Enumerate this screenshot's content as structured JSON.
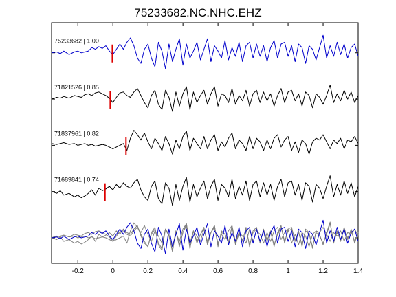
{
  "chart_data": {
    "type": "line",
    "title": "75233682.NC.NHC.EHZ",
    "xlabel": "",
    "ylabel": "",
    "xlim": [
      -0.35,
      1.4
    ],
    "xticks": [
      -0.2,
      0,
      0.2,
      0.4,
      0.6,
      0.8,
      1,
      1.2,
      1.4
    ],
    "xtick_labels": [
      "-0.2",
      "0",
      "0.2",
      "0.4",
      "0.6",
      "0.8",
      "1",
      "1.2",
      "1.4"
    ],
    "grid": false,
    "legend": "none",
    "colors": {
      "primary": "#0000cc",
      "secondary": "#000000",
      "overlay": "#808080",
      "marker": "#dd0000"
    },
    "series": [
      {
        "name": "75233682 | 1.00",
        "color": "#0000cc",
        "pick_time": -0.003,
        "t": [
          -0.35,
          -0.32,
          -0.3,
          -0.28,
          -0.25,
          -0.22,
          -0.2,
          -0.18,
          -0.16,
          -0.14,
          -0.12,
          -0.1,
          -0.08,
          -0.06,
          -0.04,
          -0.02,
          0,
          0.02,
          0.04,
          0.06,
          0.08,
          0.1,
          0.12,
          0.14,
          0.16,
          0.18,
          0.2,
          0.22,
          0.24,
          0.26,
          0.28,
          0.3,
          0.32,
          0.34,
          0.36,
          0.38,
          0.4,
          0.42,
          0.44,
          0.46,
          0.48,
          0.5,
          0.52,
          0.54,
          0.56,
          0.58,
          0.6,
          0.62,
          0.64,
          0.66,
          0.68,
          0.7,
          0.72,
          0.74,
          0.76,
          0.78,
          0.8,
          0.82,
          0.84,
          0.86,
          0.88,
          0.9,
          0.92,
          0.94,
          0.96,
          0.98,
          1,
          1.02,
          1.04,
          1.06,
          1.08,
          1.1,
          1.12,
          1.14,
          1.16,
          1.18,
          1.2,
          1.22,
          1.24,
          1.26,
          1.28,
          1.3,
          1.32,
          1.34,
          1.36,
          1.38,
          1.4
        ],
        "v": [
          0,
          0.05,
          -0.05,
          0.1,
          -0.1,
          0.05,
          0.1,
          0,
          0.05,
          0.1,
          0.3,
          0.2,
          0.35,
          0.25,
          0.4,
          0.1,
          -0.1,
          0.2,
          0.5,
          0.2,
          0.6,
          0.85,
          0.4,
          -0.3,
          -0.6,
          0.2,
          0.5,
          -0.3,
          -0.8,
          0.6,
          0.1,
          -0.9,
          0.5,
          -0.5,
          0.2,
          0.8,
          -0.7,
          0.5,
          -0.3,
          0.1,
          0.6,
          -0.4,
          0.2,
          0.8,
          -0.5,
          0.4,
          0.1,
          -0.3,
          0.7,
          -0.4,
          0.3,
          -0.2,
          0.6,
          -0.5,
          0.4,
          0.6,
          -0.3,
          0.5,
          -0.2,
          0.4,
          -0.5,
          0.3,
          0.7,
          -0.3,
          0.5,
          0.6,
          -0.2,
          0.4,
          -0.5,
          0.5,
          0.3,
          -0.6,
          0.4,
          0.2,
          -0.4,
          0.3,
          1.0,
          -0.3,
          0.4,
          -0.2,
          0.6,
          -0.1,
          0.5,
          -0.3,
          0.3,
          0.5,
          -0.2
        ]
      },
      {
        "name": "71821526 | 0.85",
        "color": "#000000",
        "pick_time": -0.015,
        "t": [
          -0.35,
          -0.32,
          -0.3,
          -0.28,
          -0.25,
          -0.22,
          -0.2,
          -0.18,
          -0.16,
          -0.14,
          -0.12,
          -0.1,
          -0.08,
          -0.06,
          -0.04,
          -0.02,
          0,
          0.02,
          0.04,
          0.06,
          0.08,
          0.1,
          0.12,
          0.14,
          0.16,
          0.18,
          0.2,
          0.22,
          0.24,
          0.26,
          0.28,
          0.3,
          0.32,
          0.34,
          0.36,
          0.38,
          0.4,
          0.42,
          0.44,
          0.46,
          0.48,
          0.5,
          0.52,
          0.54,
          0.56,
          0.58,
          0.6,
          0.62,
          0.64,
          0.66,
          0.68,
          0.7,
          0.72,
          0.74,
          0.76,
          0.78,
          0.8,
          0.82,
          0.84,
          0.86,
          0.88,
          0.9,
          0.92,
          0.94,
          0.96,
          0.98,
          1,
          1.02,
          1.04,
          1.06,
          1.08,
          1.1,
          1.12,
          1.14,
          1.16,
          1.18,
          1.2,
          1.22,
          1.24,
          1.26,
          1.28,
          1.3,
          1.32,
          1.34,
          1.36,
          1.38,
          1.4
        ],
        "v": [
          0,
          0.1,
          0.05,
          0.15,
          0.05,
          0.2,
          0.15,
          0.1,
          0.25,
          0.3,
          0.2,
          0.35,
          0.4,
          0.3,
          0.2,
          0.05,
          -0.2,
          0.1,
          0.35,
          0.4,
          0.2,
          0.1,
          0.4,
          0.6,
          0.2,
          -0.2,
          -0.5,
          0.2,
          0.5,
          -0.3,
          -0.6,
          0.5,
          0.1,
          -0.7,
          0.4,
          -0.4,
          0.3,
          0.7,
          -0.6,
          0.4,
          -0.2,
          0.2,
          0.5,
          -0.3,
          0.3,
          0.7,
          -0.4,
          0.3,
          0.2,
          -0.2,
          0.6,
          -0.3,
          0.2,
          -0.1,
          0.5,
          -0.4,
          0.3,
          0.5,
          -0.2,
          0.4,
          -0.1,
          0.3,
          -0.4,
          0.2,
          0.6,
          -0.2,
          0.4,
          0.5,
          -0.1,
          0.3,
          -0.4,
          0.4,
          0.2,
          -0.5,
          0.3,
          0.1,
          -0.3,
          0.2,
          0.8,
          -0.2,
          0.3,
          -0.1,
          0.5,
          0.0,
          0.4,
          -0.2,
          0.2
        ]
      },
      {
        "name": "71837961 | 0.82",
        "color": "#000000",
        "pick_time": 0.075,
        "t": [
          -0.35,
          -0.32,
          -0.3,
          -0.28,
          -0.25,
          -0.22,
          -0.2,
          -0.18,
          -0.16,
          -0.14,
          -0.12,
          -0.1,
          -0.08,
          -0.06,
          -0.04,
          -0.02,
          0,
          0.02,
          0.04,
          0.06,
          0.08,
          0.1,
          0.12,
          0.14,
          0.16,
          0.18,
          0.2,
          0.22,
          0.24,
          0.26,
          0.28,
          0.3,
          0.32,
          0.34,
          0.36,
          0.38,
          0.4,
          0.42,
          0.44,
          0.46,
          0.48,
          0.5,
          0.52,
          0.54,
          0.56,
          0.58,
          0.6,
          0.62,
          0.64,
          0.66,
          0.68,
          0.7,
          0.72,
          0.74,
          0.76,
          0.78,
          0.8,
          0.82,
          0.84,
          0.86,
          0.88,
          0.9,
          0.92,
          0.94,
          0.96,
          0.98,
          1,
          1.02,
          1.04,
          1.06,
          1.08,
          1.1,
          1.12,
          1.14,
          1.16,
          1.18,
          1.2,
          1.22,
          1.24,
          1.26,
          1.28,
          1.3,
          1.32,
          1.34,
          1.36,
          1.38,
          1.4
        ],
        "v": [
          0.1,
          0.05,
          0.1,
          0.15,
          0.05,
          0.1,
          0.0,
          0.05,
          0.1,
          0.0,
          0.05,
          -0.05,
          0.0,
          0.05,
          0.0,
          -0.1,
          -0.2,
          -0.1,
          0.0,
          0.1,
          -0.3,
          0.4,
          0.85,
          0.6,
          0.3,
          0.7,
          0.2,
          -0.2,
          0.4,
          0.1,
          -0.3,
          0.5,
          0.1,
          -0.5,
          0.3,
          -0.2,
          0.5,
          0.8,
          -0.3,
          0.4,
          0.1,
          -0.2,
          0.5,
          -0.2,
          0.3,
          0.6,
          -0.3,
          0.2,
          -0.1,
          0.4,
          0.7,
          -0.2,
          0.3,
          0.1,
          -0.3,
          0.5,
          -0.2,
          0.4,
          0.2,
          -0.3,
          0.3,
          -0.2,
          0.4,
          0.6,
          -0.1,
          0.3,
          0.5,
          -0.3,
          0.2,
          -0.4,
          0.3,
          0.1,
          -0.5,
          0.2,
          0.4,
          0.3,
          0.6,
          0.2,
          -0.2,
          0.3,
          0.1,
          0.4,
          -0.2,
          0.3,
          0.2,
          0.5,
          0.1
        ]
      },
      {
        "name": "71689841 | 0.74",
        "color": "#000000",
        "pick_time": -0.045,
        "t": [
          -0.35,
          -0.32,
          -0.3,
          -0.28,
          -0.25,
          -0.22,
          -0.2,
          -0.18,
          -0.16,
          -0.14,
          -0.12,
          -0.1,
          -0.08,
          -0.06,
          -0.04,
          -0.02,
          0,
          0.02,
          0.04,
          0.06,
          0.08,
          0.1,
          0.12,
          0.14,
          0.16,
          0.18,
          0.2,
          0.22,
          0.24,
          0.26,
          0.28,
          0.3,
          0.32,
          0.34,
          0.36,
          0.38,
          0.4,
          0.42,
          0.44,
          0.46,
          0.48,
          0.5,
          0.52,
          0.54,
          0.56,
          0.58,
          0.6,
          0.62,
          0.64,
          0.66,
          0.68,
          0.7,
          0.72,
          0.74,
          0.76,
          0.78,
          0.8,
          0.82,
          0.84,
          0.86,
          0.88,
          0.9,
          0.92,
          0.94,
          0.96,
          0.98,
          1,
          1.02,
          1.04,
          1.06,
          1.08,
          1.1,
          1.12,
          1.14,
          1.16,
          1.18,
          1.2,
          1.22,
          1.24,
          1.26,
          1.28,
          1.3,
          1.32,
          1.34,
          1.36,
          1.38,
          1.4
        ],
        "v": [
          0,
          -0.1,
          0.05,
          -0.2,
          -0.1,
          -0.3,
          -0.2,
          -0.35,
          -0.25,
          -0.1,
          0.1,
          -0.2,
          0.2,
          0.05,
          0.15,
          0.3,
          0.1,
          0.4,
          0.2,
          0.5,
          0.3,
          0.2,
          0.5,
          0.7,
          0.1,
          -0.3,
          -0.5,
          0.3,
          0.6,
          -0.4,
          -0.7,
          0.5,
          0.2,
          -0.8,
          0.4,
          -0.5,
          0.3,
          0.8,
          -0.6,
          0.4,
          -0.3,
          0.2,
          0.6,
          -0.4,
          0.3,
          0.7,
          -0.5,
          0.4,
          0.2,
          -0.3,
          0.7,
          -0.4,
          0.3,
          -0.2,
          0.6,
          -0.5,
          0.4,
          0.6,
          -0.3,
          0.5,
          -0.2,
          0.4,
          -0.5,
          0.3,
          0.7,
          -0.3,
          0.5,
          0.6,
          -0.2,
          0.4,
          -0.5,
          0.5,
          0.3,
          -0.6,
          0.4,
          0.2,
          -0.4,
          0.3,
          0.9,
          -0.3,
          0.4,
          -0.2,
          0.6,
          -0.1,
          0.5,
          -0.3,
          0.3
        ]
      }
    ]
  }
}
